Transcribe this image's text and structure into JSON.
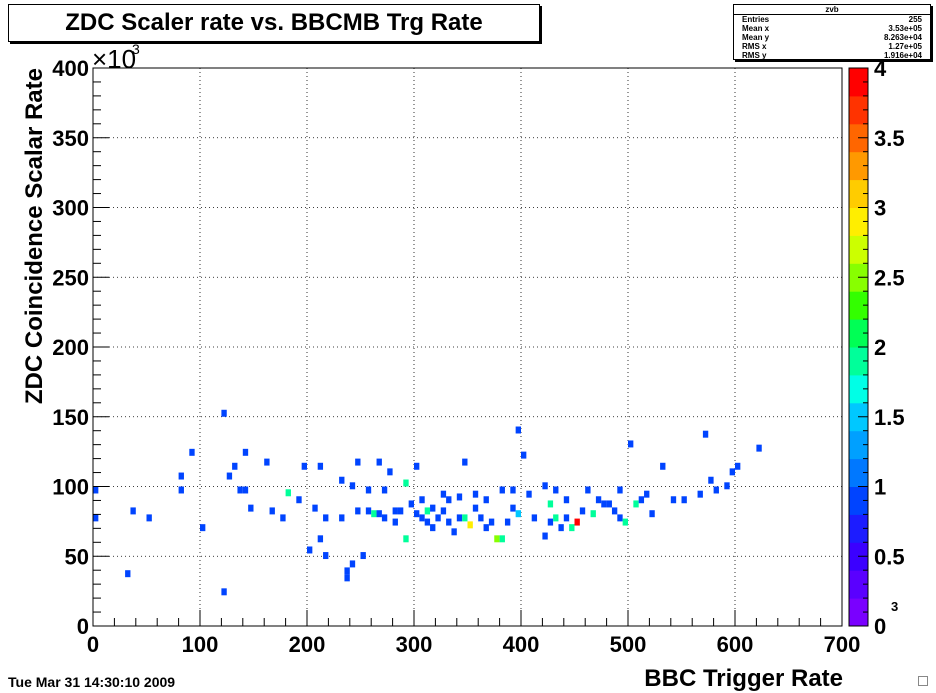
{
  "title": "ZDC Scaler rate vs. BBCMB Trg Rate",
  "stats": {
    "name": "zvb",
    "rows": [
      {
        "label": "Entries",
        "value": "255"
      },
      {
        "label": "Mean x",
        "value": "3.53e+05"
      },
      {
        "label": "Mean y",
        "value": "8.263e+04"
      },
      {
        "label": "RMS x",
        "value": "1.27e+05"
      },
      {
        "label": "RMS y",
        "value": "1.916e+04"
      }
    ]
  },
  "footer": {
    "date": "Tue Mar 31 14:30:10 2009"
  },
  "chart_data": {
    "type": "heatmap",
    "xlabel": "BBC Trigger Rate",
    "ylabel": "ZDC Coincidence Scalar Rate",
    "x_multiplier_label": "3",
    "y_multiplier_label": "×10",
    "y_multiplier_exp": "3",
    "xlim": [
      0,
      700
    ],
    "ylim": [
      0,
      400
    ],
    "x_ticks": [
      "0",
      "100",
      "200",
      "300",
      "400",
      "500",
      "600",
      "700"
    ],
    "y_ticks": [
      "0",
      "50",
      "100",
      "150",
      "200",
      "250",
      "300",
      "350",
      "400"
    ],
    "grid": true,
    "bin_width": [
      5,
      5
    ],
    "colorbar": {
      "range": [
        0,
        4
      ],
      "ticks": [
        "0",
        "0.5",
        "1",
        "1.5",
        "2",
        "2.5",
        "3",
        "3.5",
        "4"
      ]
    },
    "cells": [
      [
        0,
        95,
        1
      ],
      [
        0,
        75,
        1
      ],
      [
        30,
        35,
        1
      ],
      [
        35,
        80,
        1
      ],
      [
        50,
        75,
        1
      ],
      [
        80,
        105,
        1
      ],
      [
        80,
        95,
        1
      ],
      [
        90,
        122,
        1
      ],
      [
        100,
        68,
        1
      ],
      [
        120,
        150,
        1
      ],
      [
        120,
        22,
        1
      ],
      [
        125,
        105,
        1
      ],
      [
        130,
        112,
        1
      ],
      [
        135,
        95,
        1
      ],
      [
        140,
        95,
        1
      ],
      [
        140,
        122,
        1
      ],
      [
        145,
        82,
        1
      ],
      [
        160,
        115,
        1
      ],
      [
        165,
        80,
        1
      ],
      [
        175,
        75,
        1
      ],
      [
        180,
        93,
        2
      ],
      [
        190,
        88,
        1
      ],
      [
        195,
        112,
        1
      ],
      [
        200,
        52,
        1
      ],
      [
        205,
        82,
        1
      ],
      [
        210,
        112,
        1
      ],
      [
        210,
        60,
        1
      ],
      [
        215,
        48,
        1
      ],
      [
        215,
        75,
        1
      ],
      [
        230,
        102,
        1
      ],
      [
        230,
        75,
        1
      ],
      [
        235,
        32,
        1
      ],
      [
        235,
        37,
        1
      ],
      [
        240,
        42,
        1
      ],
      [
        240,
        98,
        1
      ],
      [
        245,
        115,
        1
      ],
      [
        245,
        80,
        1
      ],
      [
        250,
        48,
        1
      ],
      [
        255,
        95,
        1
      ],
      [
        255,
        80,
        1
      ],
      [
        260,
        78,
        2
      ],
      [
        265,
        78,
        1
      ],
      [
        265,
        115,
        1
      ],
      [
        270,
        75,
        1
      ],
      [
        270,
        95,
        1
      ],
      [
        275,
        108,
        1
      ],
      [
        280,
        80,
        1
      ],
      [
        280,
        72,
        1
      ],
      [
        285,
        80,
        1
      ],
      [
        290,
        60,
        2
      ],
      [
        290,
        100,
        2
      ],
      [
        295,
        85,
        1
      ],
      [
        300,
        78,
        1
      ],
      [
        300,
        112,
        1
      ],
      [
        305,
        75,
        1
      ],
      [
        305,
        88,
        1
      ],
      [
        310,
        80,
        2
      ],
      [
        310,
        72,
        1
      ],
      [
        315,
        82,
        1
      ],
      [
        315,
        68,
        1
      ],
      [
        320,
        75,
        1
      ],
      [
        325,
        80,
        1
      ],
      [
        325,
        92,
        1
      ],
      [
        330,
        72,
        1
      ],
      [
        330,
        88,
        1
      ],
      [
        335,
        65,
        1
      ],
      [
        340,
        75,
        1
      ],
      [
        340,
        90,
        1
      ],
      [
        345,
        75,
        2
      ],
      [
        345,
        115,
        1
      ],
      [
        350,
        70,
        3
      ],
      [
        355,
        82,
        1
      ],
      [
        355,
        92,
        1
      ],
      [
        360,
        75,
        1
      ],
      [
        365,
        68,
        1
      ],
      [
        365,
        88,
        1
      ],
      [
        370,
        72,
        1
      ],
      [
        375,
        60,
        2.5
      ],
      [
        380,
        60,
        2
      ],
      [
        380,
        95,
        1
      ],
      [
        385,
        72,
        1
      ],
      [
        390,
        82,
        1
      ],
      [
        390,
        95,
        1
      ],
      [
        395,
        138,
        1
      ],
      [
        395,
        78,
        1.5
      ],
      [
        400,
        120,
        1
      ],
      [
        405,
        92,
        1
      ],
      [
        410,
        75,
        1
      ],
      [
        420,
        62,
        1
      ],
      [
        420,
        98,
        1
      ],
      [
        425,
        72,
        1
      ],
      [
        425,
        85,
        2
      ],
      [
        430,
        75,
        2
      ],
      [
        430,
        95,
        1
      ],
      [
        435,
        68,
        1
      ],
      [
        440,
        75,
        1
      ],
      [
        440,
        88,
        1
      ],
      [
        445,
        68,
        2
      ],
      [
        450,
        72,
        4
      ],
      [
        455,
        80,
        1
      ],
      [
        460,
        95,
        1
      ],
      [
        465,
        78,
        2
      ],
      [
        470,
        88,
        1
      ],
      [
        475,
        85,
        1
      ],
      [
        480,
        85,
        1
      ],
      [
        485,
        80,
        1
      ],
      [
        490,
        75,
        1
      ],
      [
        490,
        95,
        1
      ],
      [
        495,
        72,
        2
      ],
      [
        500,
        128,
        1
      ],
      [
        505,
        85,
        2
      ],
      [
        510,
        88,
        1
      ],
      [
        515,
        92,
        1
      ],
      [
        520,
        78,
        1
      ],
      [
        530,
        112,
        1
      ],
      [
        540,
        88,
        1
      ],
      [
        550,
        88,
        1
      ],
      [
        565,
        92,
        1
      ],
      [
        570,
        135,
        1
      ],
      [
        575,
        102,
        1
      ],
      [
        580,
        95,
        1
      ],
      [
        590,
        98,
        1
      ],
      [
        595,
        108,
        1
      ],
      [
        600,
        112,
        1
      ],
      [
        620,
        125,
        1
      ]
    ]
  }
}
